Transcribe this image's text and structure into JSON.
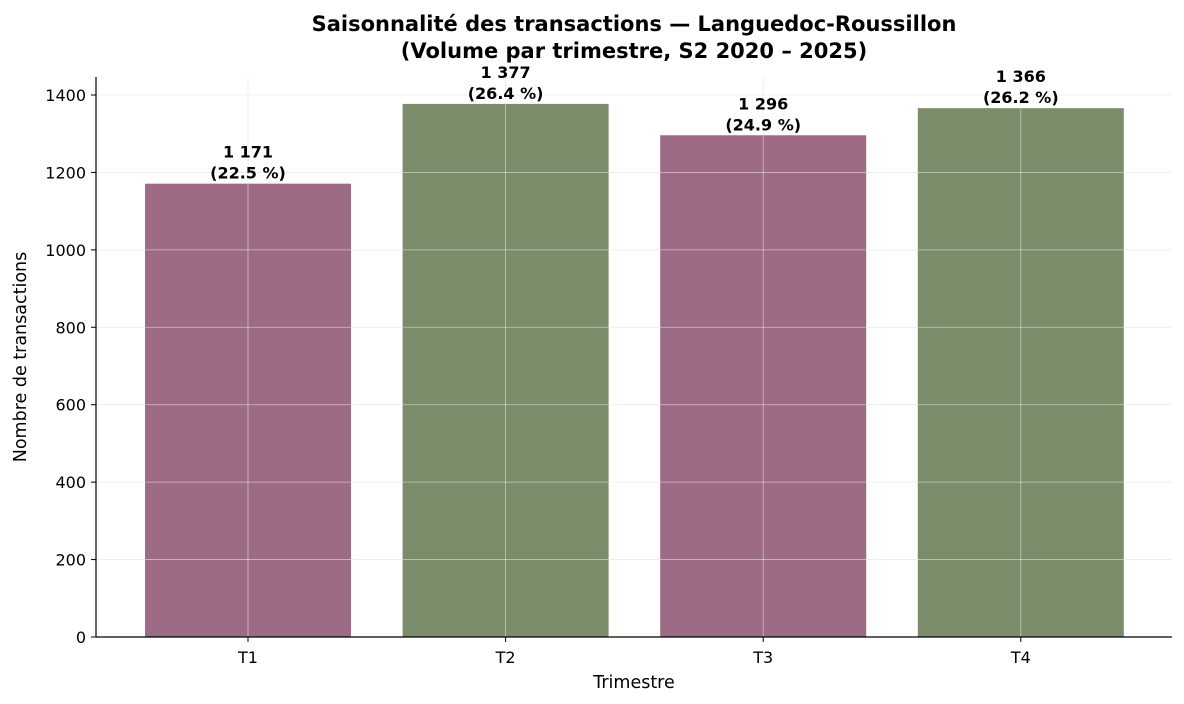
{
  "chart_data": {
    "type": "bar",
    "title": "Saisonnalité des transactions — Languedoc-Roussillon",
    "subtitle": "(Volume par trimestre, S2 2020 – 2025)",
    "xlabel": "Trimestre",
    "ylabel": "Nombre de transactions",
    "categories": [
      "T1",
      "T2",
      "T3",
      "T4"
    ],
    "values": [
      1171,
      1377,
      1296,
      1366
    ],
    "value_labels": [
      "1 171",
      "1 377",
      "1 296",
      "1 366"
    ],
    "percent_labels": [
      "(22.5 %)",
      "(26.4 %)",
      "(24.9 %)",
      "(26.2 %)"
    ],
    "bar_colors": [
      "#9e6b87",
      "#7a8c69",
      "#9e6b87",
      "#7a8c69"
    ],
    "ylim": [
      0,
      1450
    ],
    "yticks": [
      0,
      200,
      400,
      600,
      800,
      1000,
      1200,
      1400
    ],
    "grid": true,
    "legend": "none"
  }
}
